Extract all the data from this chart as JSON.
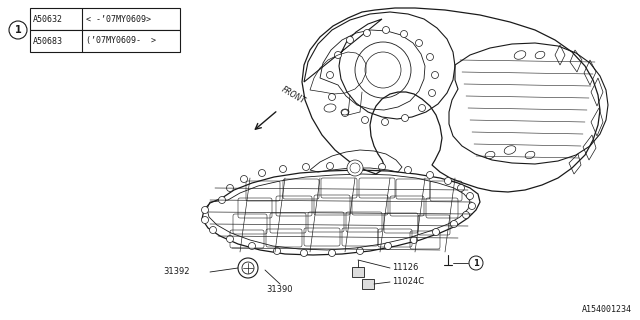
{
  "background_color": "#ffffff",
  "line_color": "#1a1a1a",
  "title_ref": "A154001234",
  "table": {
    "rows": [
      {
        "part": "A50632",
        "desc": "< -’07MY0609>"
      },
      {
        "part": "A50683",
        "desc": "(’07MY0609-  >"
      }
    ]
  },
  "figure_width": 6.4,
  "figure_height": 3.2,
  "dpi": 100
}
